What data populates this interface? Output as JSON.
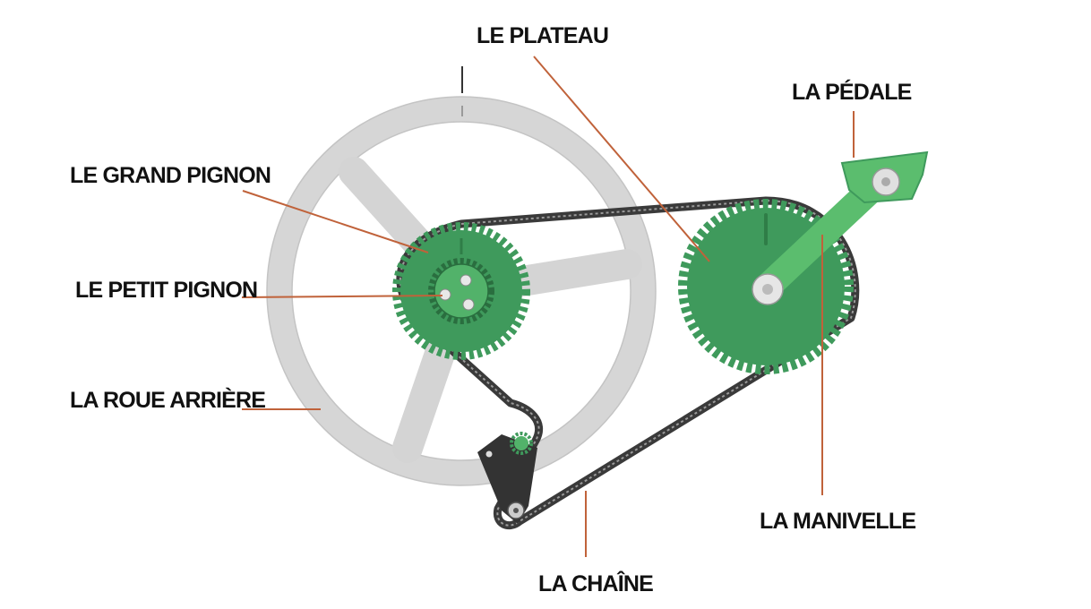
{
  "labels": {
    "plateau": "LE PLATEAU",
    "pedale": "LA PÉDALE",
    "grand_pignon": "LE GRAND PIGNON",
    "petit_pignon": "LE PETIT PIGNON",
    "roue_arriere": "LA ROUE ARRIÈRE",
    "manivelle": "LA MANIVELLE",
    "chaine": "LA CHAÎNE"
  },
  "colors": {
    "gear_green": "#3f9a5c",
    "gear_green_dark": "#2f7d47",
    "crank_green": "#5bbd6e",
    "chain": "#3a3a3a",
    "wheel_gray": "#d8d8d8",
    "leader_line": "#c0623a",
    "text": "#111111"
  }
}
